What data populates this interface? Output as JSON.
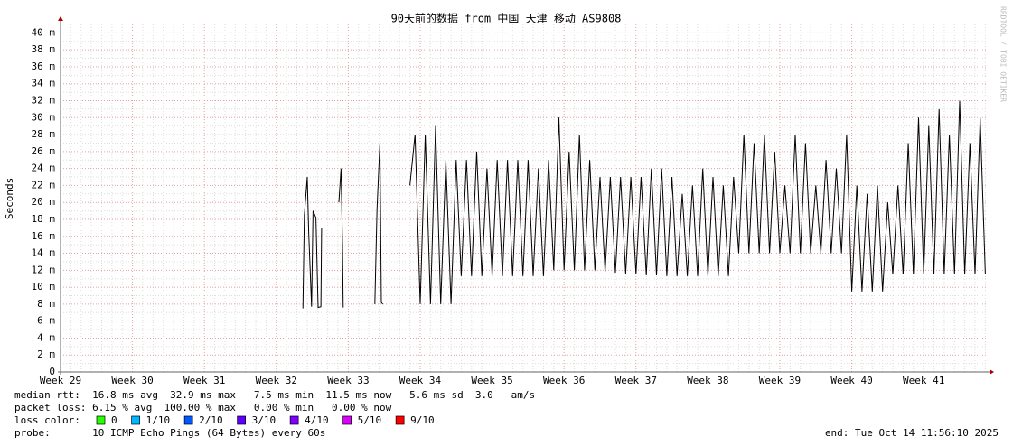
{
  "chart_data": {
    "type": "line",
    "title": "90天前的数据 from 中国 天津 移动 AS9808",
    "y_label": "Seconds",
    "watermark": "RRDTOOL / TOBI OETIKER",
    "xlim": [
      29,
      41.89
    ],
    "xticks": [
      {
        "value": 29,
        "label": "Week 29"
      },
      {
        "value": 30,
        "label": "Week 30"
      },
      {
        "value": 31,
        "label": "Week 31"
      },
      {
        "value": 32,
        "label": "Week 32"
      },
      {
        "value": 33,
        "label": "Week 33"
      },
      {
        "value": 34,
        "label": "Week 34"
      },
      {
        "value": 35,
        "label": "Week 35"
      },
      {
        "value": 36,
        "label": "Week 36"
      },
      {
        "value": 37,
        "label": "Week 37"
      },
      {
        "value": 38,
        "label": "Week 38"
      },
      {
        "value": 39,
        "label": "Week 39"
      },
      {
        "value": 40,
        "label": "Week 40"
      },
      {
        "value": 41,
        "label": "Week 41"
      }
    ],
    "ylim": [
      0,
      0.041
    ],
    "yticks": [
      0,
      {
        "value": 0.002,
        "label": "2 m"
      },
      {
        "value": 0.004,
        "label": "4 m"
      },
      {
        "value": 0.006,
        "label": "6 m"
      },
      {
        "value": 0.008,
        "label": "8 m"
      },
      {
        "value": 0.01,
        "label": "10 m"
      },
      {
        "value": 0.012,
        "label": "12 m"
      },
      {
        "value": 0.014,
        "label": "14 m"
      },
      {
        "value": 0.016,
        "label": "16 m"
      },
      {
        "value": 0.018,
        "label": "18 m"
      },
      {
        "value": 0.02,
        "label": "20 m"
      },
      {
        "value": 0.022,
        "label": "22 m"
      },
      {
        "value": 0.024,
        "label": "24 m"
      },
      {
        "value": 0.026,
        "label": "26 m"
      },
      {
        "value": 0.028,
        "label": "28 m"
      },
      {
        "value": 0.03,
        "label": "30 m"
      },
      {
        "value": 0.032,
        "label": "32 m"
      },
      {
        "value": 0.034,
        "label": "34 m"
      },
      {
        "value": 0.036,
        "label": "36 m"
      },
      {
        "value": 0.038,
        "label": "38 m"
      },
      {
        "value": 0.04,
        "label": "40 m"
      }
    ],
    "grid": true,
    "x": [
      32.37,
      32.39,
      32.43,
      32.45,
      32.49,
      32.51,
      32.55,
      32.58,
      32.62,
      32.63,
      32.75,
      32.87,
      32.9,
      32.92,
      32.93,
      33.2,
      33.37,
      33.4,
      33.44,
      33.46,
      33.48,
      33.7,
      33.857,
      33.929,
      34.0,
      34.071,
      34.143,
      34.214,
      34.286,
      34.357,
      34.429,
      34.5,
      34.571,
      34.643,
      34.714,
      34.786,
      34.857,
      34.929,
      35.0,
      35.071,
      35.143,
      35.214,
      35.286,
      35.357,
      35.429,
      35.5,
      35.571,
      35.643,
      35.714,
      35.786,
      35.857,
      35.929,
      36.0,
      36.071,
      36.143,
      36.214,
      36.286,
      36.357,
      36.429,
      36.5,
      36.571,
      36.643,
      36.714,
      36.786,
      36.857,
      36.929,
      37.0,
      37.071,
      37.143,
      37.214,
      37.286,
      37.357,
      37.429,
      37.5,
      37.571,
      37.643,
      37.714,
      37.786,
      37.857,
      37.929,
      38.0,
      38.071,
      38.143,
      38.214,
      38.286,
      38.357,
      38.429,
      38.5,
      38.571,
      38.643,
      38.714,
      38.786,
      38.857,
      38.929,
      39.0,
      39.071,
      39.143,
      39.214,
      39.286,
      39.357,
      39.429,
      39.5,
      39.571,
      39.643,
      39.714,
      39.786,
      39.857,
      39.929,
      40.0,
      40.071,
      40.143,
      40.214,
      40.286,
      40.357,
      40.429,
      40.5,
      40.571,
      40.643,
      40.714,
      40.786,
      40.857,
      40.929,
      41.0,
      41.071,
      41.143,
      41.214,
      41.286,
      41.357,
      41.429,
      41.5,
      41.571,
      41.643,
      41.714,
      41.786,
      41.857
    ],
    "series": [
      {
        "color": "#000000",
        "values": [
          0.0075,
          0.0185,
          0.023,
          0.0165,
          0.0077,
          0.019,
          0.0182,
          0.0076,
          0.0077,
          0.017,
          null,
          0.02,
          0.024,
          0.015,
          0.0076,
          null,
          0.008,
          0.0192,
          0.027,
          0.0082,
          0.008,
          null,
          0.022,
          0.028,
          0.008,
          0.028,
          0.008,
          0.029,
          0.008,
          0.025,
          0.008,
          0.025,
          0.0113,
          0.025,
          0.0113,
          0.026,
          0.0113,
          0.024,
          0.0113,
          0.025,
          0.0113,
          0.025,
          0.0113,
          0.025,
          0.0113,
          0.025,
          0.0113,
          0.024,
          0.0113,
          0.025,
          0.012,
          0.03,
          0.012,
          0.026,
          0.012,
          0.028,
          0.012,
          0.025,
          0.012,
          0.023,
          0.0118,
          0.023,
          0.0117,
          0.023,
          0.0116,
          0.023,
          0.0115,
          0.023,
          0.0114,
          0.024,
          0.0114,
          0.024,
          0.0113,
          0.023,
          0.0113,
          0.021,
          0.0113,
          0.022,
          0.0113,
          0.024,
          0.0113,
          0.023,
          0.0113,
          0.022,
          0.0113,
          0.023,
          0.014,
          0.028,
          0.014,
          0.027,
          0.014,
          0.028,
          0.014,
          0.026,
          0.014,
          0.022,
          0.014,
          0.028,
          0.014,
          0.027,
          0.014,
          0.022,
          0.014,
          0.025,
          0.014,
          0.024,
          0.014,
          0.028,
          0.0095,
          0.022,
          0.0095,
          0.021,
          0.0095,
          0.022,
          0.0095,
          0.02,
          0.0115,
          0.022,
          0.0115,
          0.027,
          0.0115,
          0.03,
          0.0115,
          0.029,
          0.0115,
          0.031,
          0.0115,
          0.028,
          0.0115,
          0.032,
          0.0115,
          0.027,
          0.0115,
          0.03,
          0.0115
        ]
      }
    ],
    "stats_lines": [
      "median rtt:  16.8 ms avg  32.9 ms max   7.5 ms min  11.5 ms now   5.6 ms sd  3.0   am/s",
      "packet loss: 6.15 % avg  100.00 % max   0.00 % min   0.00 % now"
    ],
    "loss_color": {
      "label": "loss color:",
      "items": [
        {
          "name": "0",
          "color": "#26ff00"
        },
        {
          "name": "1/10",
          "color": "#00b8ff"
        },
        {
          "name": "2/10",
          "color": "#0059ff"
        },
        {
          "name": "3/10",
          "color": "#5e00ff"
        },
        {
          "name": "4/10",
          "color": "#7e00ff"
        },
        {
          "name": "5/10",
          "color": "#dd00ff"
        },
        {
          "name": "9/10",
          "color": "#ff0000"
        }
      ]
    },
    "probe": "probe:       10 ICMP Echo Pings (64 Bytes) every 60s",
    "end": "end: Tue Oct 14 11:56:10 2025"
  }
}
